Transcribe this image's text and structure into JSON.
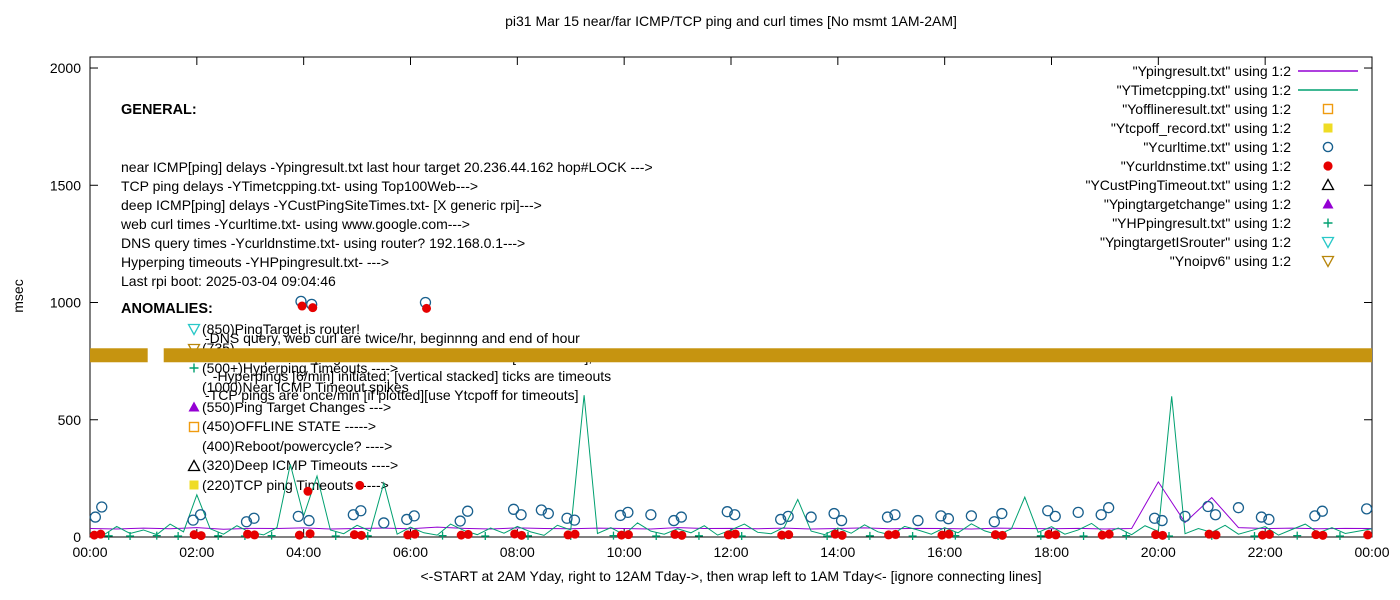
{
  "title": "pi31 Mar 15  near/far ICMP/TCP ping and curl times [No msmt 1AM-2AM]",
  "ylabel": "msec",
  "xlabel": "<-START at 2AM Yday, right to 12AM Tday->, then wrap left to 1AM Tday<- [ignore connecting lines]",
  "general": {
    "heading": "GENERAL:",
    "lines": [
      "near ICMP[ping] delays -Ypingresult.txt last hour target 20.236.44.162 hop#LOCK --->",
      "TCP ping delays -YTimetcpping.txt- using Top100Web--->",
      "deep ICMP[ping] delays -YCustPingSiteTimes.txt- [X generic rpi]--->",
      "web curl times -Ycurltime.txt- using www.google.com--->",
      "DNS query times -Ycurldnstime.txt- using router? 192.168.0.1--->",
      "Hyperping timeouts -YHPpingresult.txt- --->",
      "Last rpi boot: 2025-03-04 09:04:46"
    ],
    "notes": [
      "-DNS query, web curl are twice/hr, beginnng and end of hour",
      "-near,deep ICMP pings are once/min until timeout[1000 msec], then:",
      "  -Hyperpings [6/min] initiated; [vertical stacked] ticks are timeouts",
      "-TCP pings are once/min [if plotted][use Ytcpoff for timeouts]"
    ]
  },
  "anomalies": {
    "heading": "ANOMALIES:",
    "items": [
      {
        "marker": "triangle-down-open",
        "color": "#29c8c8",
        "label": "(850)PingTarget is router!"
      },
      {
        "marker": "triangle-down-open",
        "color": "#b8860b",
        "label": "(735)"
      },
      {
        "marker": "plus",
        "color": "#00a070",
        "label": "(500+)Hyperping Timeouts ---->"
      },
      {
        "marker": "none",
        "color": "#000000",
        "label": "(1000)Near ICMP Timeout spikes"
      },
      {
        "marker": "triangle-up-filled",
        "color": "#9400d3",
        "label": "(550)Ping Target Changes --->"
      },
      {
        "marker": "square-open",
        "color": "#ef9b0f",
        "label": "(450)OFFLINE STATE ----->"
      },
      {
        "marker": "none",
        "color": "#000000",
        "label": "(400)Reboot/powercycle? ---->"
      },
      {
        "marker": "triangle-up-open",
        "color": "#000000",
        "label": "(320)Deep ICMP Timeouts ---->"
      },
      {
        "marker": "square-filled",
        "color": "#efdc25",
        "label": "(220)TCP ping Timeouts ----->"
      }
    ]
  },
  "legend": {
    "items": [
      {
        "label": "\"Ypingresult.txt\" using 1:2",
        "marker": "line",
        "color": "#9400d3"
      },
      {
        "label": "\"YTimetcpping.txt\" using 1:2",
        "marker": "line",
        "color": "#00a070"
      },
      {
        "label": "\"Yofflineresult.txt\" using 1:2",
        "marker": "square-open",
        "color": "#ef9b0f"
      },
      {
        "label": "\"Ytcpoff_record.txt\" using 1:2",
        "marker": "square-filled",
        "color": "#efdc25"
      },
      {
        "label": "\"Ycurltime.txt\" using 1:2",
        "marker": "circle-open",
        "color": "#19608e"
      },
      {
        "label": "\"Ycurldnstime.txt\" using 1:2",
        "marker": "circle-filled",
        "color": "#e60000"
      },
      {
        "label": "\"YCustPingTimeout.txt\" using 1:2",
        "marker": "triangle-up-open",
        "color": "#000000"
      },
      {
        "label": "\"Ypingtargetchange\" using 1:2",
        "marker": "triangle-up-filled",
        "color": "#9400d3"
      },
      {
        "label": "\"YHPpingresult.txt\" using 1:2",
        "marker": "plus",
        "color": "#00a070"
      },
      {
        "label": "\"YpingtargetISrouter\" using 1:2",
        "marker": "triangle-down-open",
        "color": "#29c8c8"
      },
      {
        "label": "\"Ynoipv6\" using 1:2",
        "marker": "triangle-down-open",
        "color": "#b8860b"
      }
    ]
  },
  "chart_data": {
    "type": "mixed",
    "title": "pi31 Mar 15  near/far ICMP/TCP ping and curl times [No msmt 1AM-2AM]",
    "ylabel": "msec",
    "xlim": [
      0,
      24
    ],
    "ylim": [
      0,
      2047
    ],
    "x_tick_hours": [
      0,
      2,
      4,
      6,
      8,
      10,
      12,
      14,
      16,
      18,
      20,
      22,
      24
    ],
    "x_ticks": [
      "00:00",
      "02:00",
      "04:00",
      "06:00",
      "08:00",
      "10:00",
      "12:00",
      "14:00",
      "16:00",
      "18:00",
      "20:00",
      "22:00",
      "00:00"
    ],
    "y_ticks": [
      0,
      500,
      1000,
      1500,
      2000
    ],
    "grid": false,
    "legend_position": "top-right-inside",
    "band": {
      "name": "Ynoipv6 stacked timeout ticks",
      "y": 775,
      "thickness_px": 14,
      "color": "#c69410",
      "segments": [
        [
          0,
          1.08
        ],
        [
          1.38,
          24
        ]
      ]
    },
    "series": [
      {
        "name": "Ypingresult.txt",
        "type": "line",
        "color": "#9400d3",
        "x_start": 0,
        "x_step": 0.5,
        "values": [
          36,
          34,
          38,
          35,
          40,
          33,
          37,
          36,
          39,
          34,
          36,
          38,
          35,
          42,
          37,
          34,
          39,
          36,
          35,
          38,
          36,
          34,
          40,
          36,
          37,
          35,
          38,
          34,
          36,
          39,
          35,
          37,
          36,
          34,
          38,
          36,
          35,
          37,
          34,
          36,
          235,
          62,
          168,
          40,
          36,
          38,
          35,
          37,
          36
        ]
      },
      {
        "name": "YTimetcpping.txt",
        "type": "line",
        "color": "#00a070",
        "x_start": 0,
        "x_step": 0.25,
        "values": [
          20,
          8,
          45,
          15,
          30,
          10,
          55,
          22,
          180,
          35,
          12,
          48,
          20,
          9,
          40,
          310,
          90,
          260,
          30,
          14,
          50,
          25,
          230,
          12,
          42,
          18,
          8,
          55,
          28,
          10,
          38,
          16,
          45,
          22,
          7,
          50,
          30,
          605,
          15,
          40,
          10,
          60,
          25,
          12,
          35,
          18,
          48,
          8,
          30,
          55,
          20,
          14,
          42,
          160,
          25,
          10,
          38,
          16,
          52,
          22,
          8,
          45,
          30,
          12,
          40,
          18,
          56,
          26,
          9,
          35,
          170,
          20,
          44,
          12,
          30,
          58,
          16,
          38,
          10,
          48,
          24,
          600,
          14,
          36,
          20,
          50,
          12,
          28,
          44,
          8,
          32,
          55,
          18,
          40,
          15,
          25,
          35
        ]
      },
      {
        "name": "YHPpingresult.txt",
        "type": "scatter",
        "marker": "plus",
        "color": "#00a070",
        "points": [
          [
            0.35,
            5
          ],
          [
            0.75,
            4
          ],
          [
            1.25,
            6
          ],
          [
            1.65,
            4
          ],
          [
            2.4,
            5
          ],
          [
            2.9,
            4
          ],
          [
            3.4,
            6
          ],
          [
            4.6,
            4
          ],
          [
            5.2,
            5
          ],
          [
            6.0,
            4
          ],
          [
            6.6,
            6
          ],
          [
            7.4,
            4
          ],
          [
            8.2,
            5
          ],
          [
            9.0,
            4
          ],
          [
            9.8,
            6
          ],
          [
            10.6,
            4
          ],
          [
            11.4,
            5
          ],
          [
            12.2,
            4
          ],
          [
            13.0,
            6
          ],
          [
            13.8,
            4
          ],
          [
            14.6,
            5
          ],
          [
            15.4,
            4
          ],
          [
            16.2,
            6
          ],
          [
            17.0,
            4
          ],
          [
            17.8,
            5
          ],
          [
            18.6,
            4
          ],
          [
            19.4,
            6
          ],
          [
            20.2,
            4
          ],
          [
            21.0,
            5
          ],
          [
            21.8,
            4
          ],
          [
            22.6,
            6
          ],
          [
            23.4,
            4
          ]
        ]
      },
      {
        "name": "Ycurltime.txt",
        "type": "scatter",
        "marker": "circle-open",
        "color": "#19608e",
        "points": [
          [
            0.1,
            85
          ],
          [
            0.22,
            128
          ],
          [
            1.93,
            72
          ],
          [
            2.07,
            95
          ],
          [
            2.93,
            65
          ],
          [
            3.07,
            80
          ],
          [
            3.9,
            88
          ],
          [
            4.1,
            70
          ],
          [
            4.93,
            95
          ],
          [
            5.07,
            112
          ],
          [
            5.5,
            60
          ],
          [
            5.93,
            75
          ],
          [
            6.07,
            90
          ],
          [
            6.93,
            68
          ],
          [
            7.07,
            110
          ],
          [
            7.93,
            118
          ],
          [
            8.07,
            95
          ],
          [
            8.45,
            115
          ],
          [
            8.58,
            100
          ],
          [
            8.93,
            80
          ],
          [
            9.07,
            72
          ],
          [
            9.93,
            92
          ],
          [
            10.07,
            105
          ],
          [
            10.5,
            95
          ],
          [
            10.93,
            70
          ],
          [
            11.07,
            85
          ],
          [
            11.93,
            108
          ],
          [
            12.07,
            95
          ],
          [
            12.93,
            75
          ],
          [
            13.07,
            88
          ],
          [
            13.5,
            85
          ],
          [
            13.93,
            100
          ],
          [
            14.07,
            70
          ],
          [
            14.93,
            85
          ],
          [
            15.07,
            95
          ],
          [
            15.5,
            70
          ],
          [
            15.93,
            90
          ],
          [
            16.07,
            78
          ],
          [
            16.5,
            90
          ],
          [
            16.93,
            65
          ],
          [
            17.07,
            100
          ],
          [
            17.93,
            112
          ],
          [
            18.07,
            88
          ],
          [
            18.5,
            105
          ],
          [
            18.93,
            95
          ],
          [
            19.07,
            125
          ],
          [
            19.93,
            80
          ],
          [
            20.07,
            70
          ],
          [
            20.5,
            88
          ],
          [
            20.93,
            130
          ],
          [
            21.07,
            95
          ],
          [
            21.5,
            125
          ],
          [
            21.93,
            85
          ],
          [
            22.07,
            75
          ],
          [
            22.93,
            90
          ],
          [
            23.07,
            110
          ],
          [
            23.9,
            120
          ],
          [
            3.95,
            1005
          ],
          [
            4.15,
            992
          ],
          [
            6.28,
            1000
          ]
        ]
      },
      {
        "name": "Ycurldnstime.txt",
        "type": "scatter",
        "marker": "circle-filled",
        "color": "#e60000",
        "points": [
          [
            0.08,
            8
          ],
          [
            0.2,
            12
          ],
          [
            1.95,
            10
          ],
          [
            2.08,
            6
          ],
          [
            2.95,
            12
          ],
          [
            3.08,
            9
          ],
          [
            3.92,
            8
          ],
          [
            4.12,
            14
          ],
          [
            4.08,
            195
          ],
          [
            4.95,
            10
          ],
          [
            5.05,
            220
          ],
          [
            5.08,
            7
          ],
          [
            5.95,
            9
          ],
          [
            6.08,
            12
          ],
          [
            6.95,
            8
          ],
          [
            7.08,
            11
          ],
          [
            7.95,
            13
          ],
          [
            8.08,
            7
          ],
          [
            8.95,
            9
          ],
          [
            9.08,
            12
          ],
          [
            9.95,
            8
          ],
          [
            10.08,
            10
          ],
          [
            10.95,
            11
          ],
          [
            11.08,
            7
          ],
          [
            11.95,
            9
          ],
          [
            12.08,
            13
          ],
          [
            12.95,
            8
          ],
          [
            13.08,
            10
          ],
          [
            13.95,
            12
          ],
          [
            14.08,
            7
          ],
          [
            14.95,
            9
          ],
          [
            15.08,
            11
          ],
          [
            15.95,
            8
          ],
          [
            16.08,
            12
          ],
          [
            16.95,
            10
          ],
          [
            17.08,
            7
          ],
          [
            17.95,
            11
          ],
          [
            18.08,
            9
          ],
          [
            18.95,
            8
          ],
          [
            19.08,
            12
          ],
          [
            19.95,
            10
          ],
          [
            20.08,
            7
          ],
          [
            20.95,
            12
          ],
          [
            21.08,
            9
          ],
          [
            21.95,
            8
          ],
          [
            22.08,
            11
          ],
          [
            22.95,
            10
          ],
          [
            23.08,
            7
          ],
          [
            23.92,
            9
          ],
          [
            3.97,
            985
          ],
          [
            4.17,
            978
          ],
          [
            6.3,
            975
          ]
        ]
      }
    ]
  }
}
